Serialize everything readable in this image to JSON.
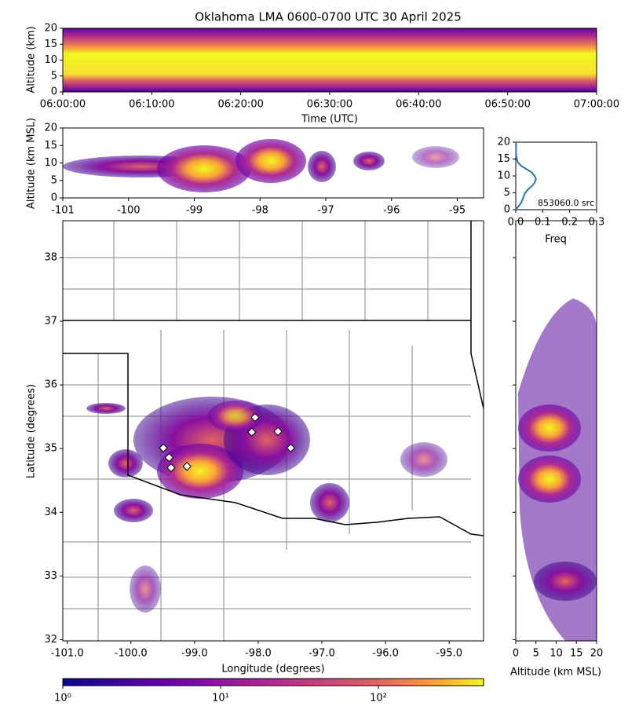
{
  "title": "Oklahoma LMA 0600-0700 UTC 30 April 2025",
  "time_height": {
    "ylabel": "Altitude (km)",
    "xlabel": "Time (UTC)",
    "xticks": [
      "06:00:00",
      "06:10:00",
      "06:20:00",
      "06:30:00",
      "06:40:00",
      "06:50:00",
      "07:00:00"
    ],
    "ylim": [
      0,
      20
    ],
    "yticks": [
      0,
      5,
      10,
      15,
      20
    ]
  },
  "lon_alt": {
    "ylabel": "Altitude (km MSL)",
    "xlim": [
      -101,
      -94.6
    ],
    "xticks": [
      -101,
      -100,
      -99,
      -98,
      -97,
      -96,
      -95
    ],
    "ylim": [
      0,
      20
    ],
    "yticks": [
      0,
      5,
      10,
      15,
      20
    ]
  },
  "histogram": {
    "xlabel": "Freq",
    "annotation": "853060.0 src",
    "xlim": [
      0,
      0.3
    ],
    "xticks": [
      {
        "value": 0,
        "label": "0.0"
      },
      {
        "value": 0.1,
        "label": "0.1"
      },
      {
        "value": 0.2,
        "label": "0.2"
      },
      {
        "value": 0.3,
        "label": "0.3"
      }
    ],
    "ylim": [
      0,
      20
    ],
    "yticks": [
      0,
      5,
      10,
      15,
      20
    ],
    "altitude": [
      0,
      1,
      2,
      3,
      4,
      5,
      6,
      7,
      8,
      9,
      10,
      11,
      12,
      13,
      14,
      15,
      16,
      17,
      18,
      19,
      20
    ],
    "freq": [
      0.0,
      0.01,
      0.02,
      0.025,
      0.03,
      0.035,
      0.045,
      0.06,
      0.07,
      0.075,
      0.07,
      0.06,
      0.04,
      0.02,
      0.008,
      0.004,
      0.002,
      0.001,
      0.001,
      0.001,
      0.001
    ]
  },
  "plan": {
    "xlabel": "Longitude (degrees)",
    "ylabel": "Latitude (degrees)",
    "xlim": [
      -101.07,
      -94.46
    ],
    "ylim": [
      31.98,
      38.58
    ],
    "xticks": [
      {
        "value": -101,
        "label": "-101.0"
      },
      {
        "value": -100,
        "label": "-100.0"
      },
      {
        "value": -99,
        "label": "-99.0"
      },
      {
        "value": -98,
        "label": "-98.0"
      },
      {
        "value": -97,
        "label": "-97.0"
      },
      {
        "value": -96,
        "label": "-96.0"
      },
      {
        "value": -95,
        "label": "-95.0"
      }
    ],
    "yticks": [
      32,
      33,
      34,
      35,
      36,
      37,
      38
    ],
    "station_lon": [
      -98.05,
      -98.1,
      -97.69,
      -97.49,
      -99.49,
      -99.4,
      -99.37,
      -99.12
    ],
    "station_lat": [
      35.49,
      35.26,
      35.27,
      35.01,
      35.01,
      34.86,
      34.7,
      34.72
    ]
  },
  "alt_lat": {
    "xlabel": "Altitude (km MSL)",
    "xlim": [
      0,
      20
    ],
    "xticks": [
      0,
      5,
      10,
      15,
      20
    ]
  },
  "colorbar": {
    "lim": [
      1,
      464
    ],
    "ticks": [
      {
        "value": 1,
        "label": "10⁰"
      },
      {
        "value": 10,
        "label": "10¹"
      },
      {
        "value": 100,
        "label": "10²"
      }
    ]
  }
}
